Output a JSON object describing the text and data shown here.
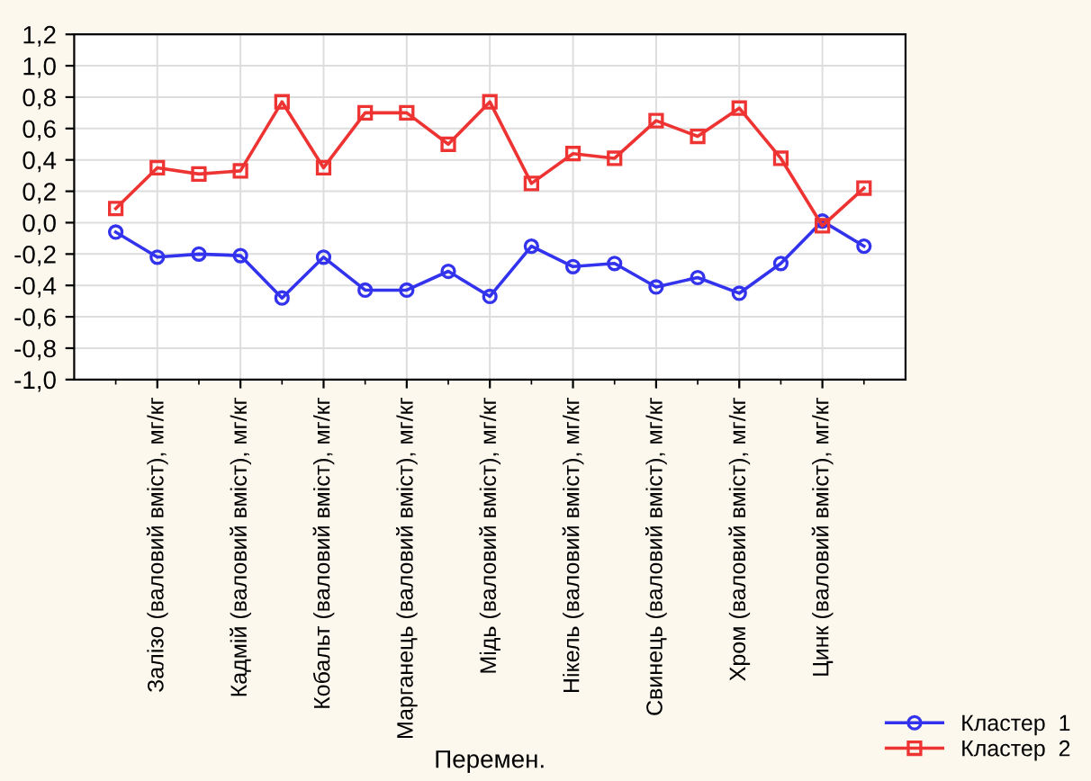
{
  "chart_data": {
    "type": "line",
    "xlabel": "Перемен.",
    "categories": [
      null,
      "Залізо (валовий вміст), мг/кг",
      null,
      "Кадмій (валовий вміст), мг/кг",
      null,
      "Кобальт (валовий вміст), мг/кг",
      null,
      "Марганець (валовий вміст), мг/кг",
      null,
      "Мідь (валовий вміст), мг/кг",
      null,
      "Нікель (валовий вміст), мг/кг",
      null,
      "Свинець (валовий вміст), мг/кг",
      null,
      "Хром (валовий вміст), мг/кг",
      null,
      "Цинк (валовий вміст), мг/кг",
      null
    ],
    "series": [
      {
        "name": "Кластер  1",
        "color": "#3333ee",
        "marker": "circle",
        "values": [
          -0.06,
          -0.22,
          -0.2,
          -0.21,
          -0.48,
          -0.22,
          -0.43,
          -0.43,
          -0.31,
          -0.47,
          -0.15,
          -0.28,
          -0.26,
          -0.41,
          -0.35,
          -0.45,
          -0.26,
          0.01,
          -0.15
        ]
      },
      {
        "name": "Кластер  2",
        "color": "#ee3333",
        "marker": "square",
        "values": [
          0.09,
          0.35,
          0.31,
          0.33,
          0.77,
          0.35,
          0.7,
          0.7,
          0.5,
          0.77,
          0.25,
          0.44,
          0.41,
          0.65,
          0.55,
          0.73,
          0.41,
          -0.02,
          0.22
        ]
      }
    ],
    "ylim": [
      -1.0,
      1.2
    ],
    "yticks": [
      {
        "value": -1.0,
        "label": "-1,0"
      },
      {
        "value": -0.8,
        "label": "-0,8"
      },
      {
        "value": -0.6,
        "label": "-0,6"
      },
      {
        "value": -0.4,
        "label": "-0,4"
      },
      {
        "value": -0.2,
        "label": "-0,2"
      },
      {
        "value": 0.0,
        "label": "0,0"
      },
      {
        "value": 0.2,
        "label": "0,2"
      },
      {
        "value": 0.4,
        "label": "0,4"
      },
      {
        "value": 0.6,
        "label": "0,6"
      },
      {
        "value": 0.8,
        "label": "0,8"
      },
      {
        "value": 1.0,
        "label": "1,0"
      },
      {
        "value": 1.2,
        "label": "1,2"
      }
    ],
    "grid": true,
    "legend": "bottom right",
    "line_style": "solid"
  }
}
